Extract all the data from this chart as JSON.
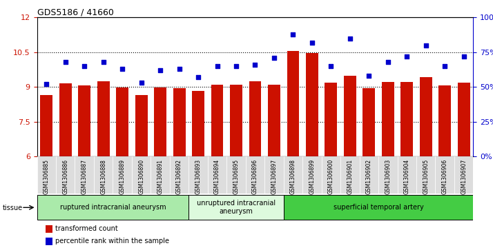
{
  "title": "GDS5186 / 41660",
  "samples": [
    "GSM1306885",
    "GSM1306886",
    "GSM1306887",
    "GSM1306888",
    "GSM1306889",
    "GSM1306890",
    "GSM1306891",
    "GSM1306892",
    "GSM1306893",
    "GSM1306894",
    "GSM1306895",
    "GSM1306896",
    "GSM1306897",
    "GSM1306898",
    "GSM1306899",
    "GSM1306900",
    "GSM1306901",
    "GSM1306902",
    "GSM1306903",
    "GSM1306904",
    "GSM1306905",
    "GSM1306906",
    "GSM1306907"
  ],
  "transformed_count": [
    8.65,
    9.15,
    9.05,
    9.25,
    8.97,
    8.65,
    8.97,
    8.95,
    8.82,
    9.08,
    9.1,
    9.23,
    9.1,
    10.55,
    10.47,
    9.18,
    9.47,
    8.95,
    9.22,
    9.22,
    9.43,
    9.05,
    9.18
  ],
  "percentile_rank": [
    52,
    68,
    65,
    68,
    63,
    53,
    62,
    63,
    57,
    65,
    65,
    66,
    71,
    88,
    82,
    65,
    85,
    58,
    68,
    72,
    80,
    65,
    72
  ],
  "groups": [
    {
      "label": "ruptured intracranial aneurysm",
      "start": 0,
      "end": 8,
      "color": "#aaeaaa"
    },
    {
      "label": "unruptured intracranial\naneurysm",
      "start": 8,
      "end": 13,
      "color": "#ddfadd"
    },
    {
      "label": "superficial temporal artery",
      "start": 13,
      "end": 23,
      "color": "#44cc44"
    }
  ],
  "ylim_left": [
    6,
    12
  ],
  "ylim_right": [
    0,
    100
  ],
  "yticks_left": [
    6,
    7.5,
    9,
    10.5,
    12
  ],
  "yticks_right": [
    0,
    25,
    50,
    75,
    100
  ],
  "bar_color": "#cc1100",
  "dot_color": "#0000cc",
  "background_color": "#ffffff",
  "dotted_lines": [
    7.5,
    9.0,
    10.5
  ],
  "tissue_label": "tissue",
  "legend_bar_label": "transformed count",
  "legend_dot_label": "percentile rank within the sample",
  "xticklabel_bg": "#dddddd"
}
